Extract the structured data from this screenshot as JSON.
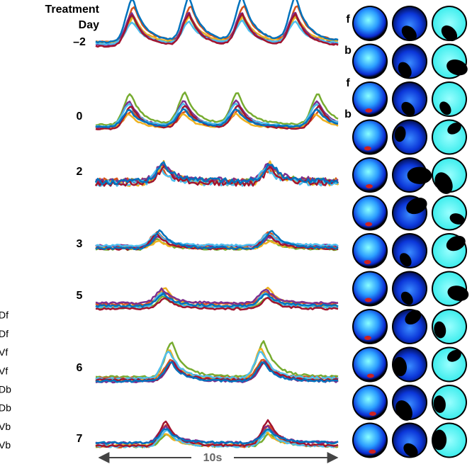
{
  "header": {
    "title": "Treatment Day"
  },
  "rows": [
    {
      "label": "–2"
    },
    {
      "label": "0"
    },
    {
      "label": "2"
    },
    {
      "label": "3"
    },
    {
      "label": "5"
    },
    {
      "label": "6"
    },
    {
      "label": "7"
    }
  ],
  "view_labels": [
    "f",
    "b",
    "f",
    "b"
  ],
  "legend": [
    "Df",
    "Df",
    "Vf",
    "Vf",
    "Db",
    "Db",
    "Vb",
    "Vb"
  ],
  "scale_bar": "10s"
}
